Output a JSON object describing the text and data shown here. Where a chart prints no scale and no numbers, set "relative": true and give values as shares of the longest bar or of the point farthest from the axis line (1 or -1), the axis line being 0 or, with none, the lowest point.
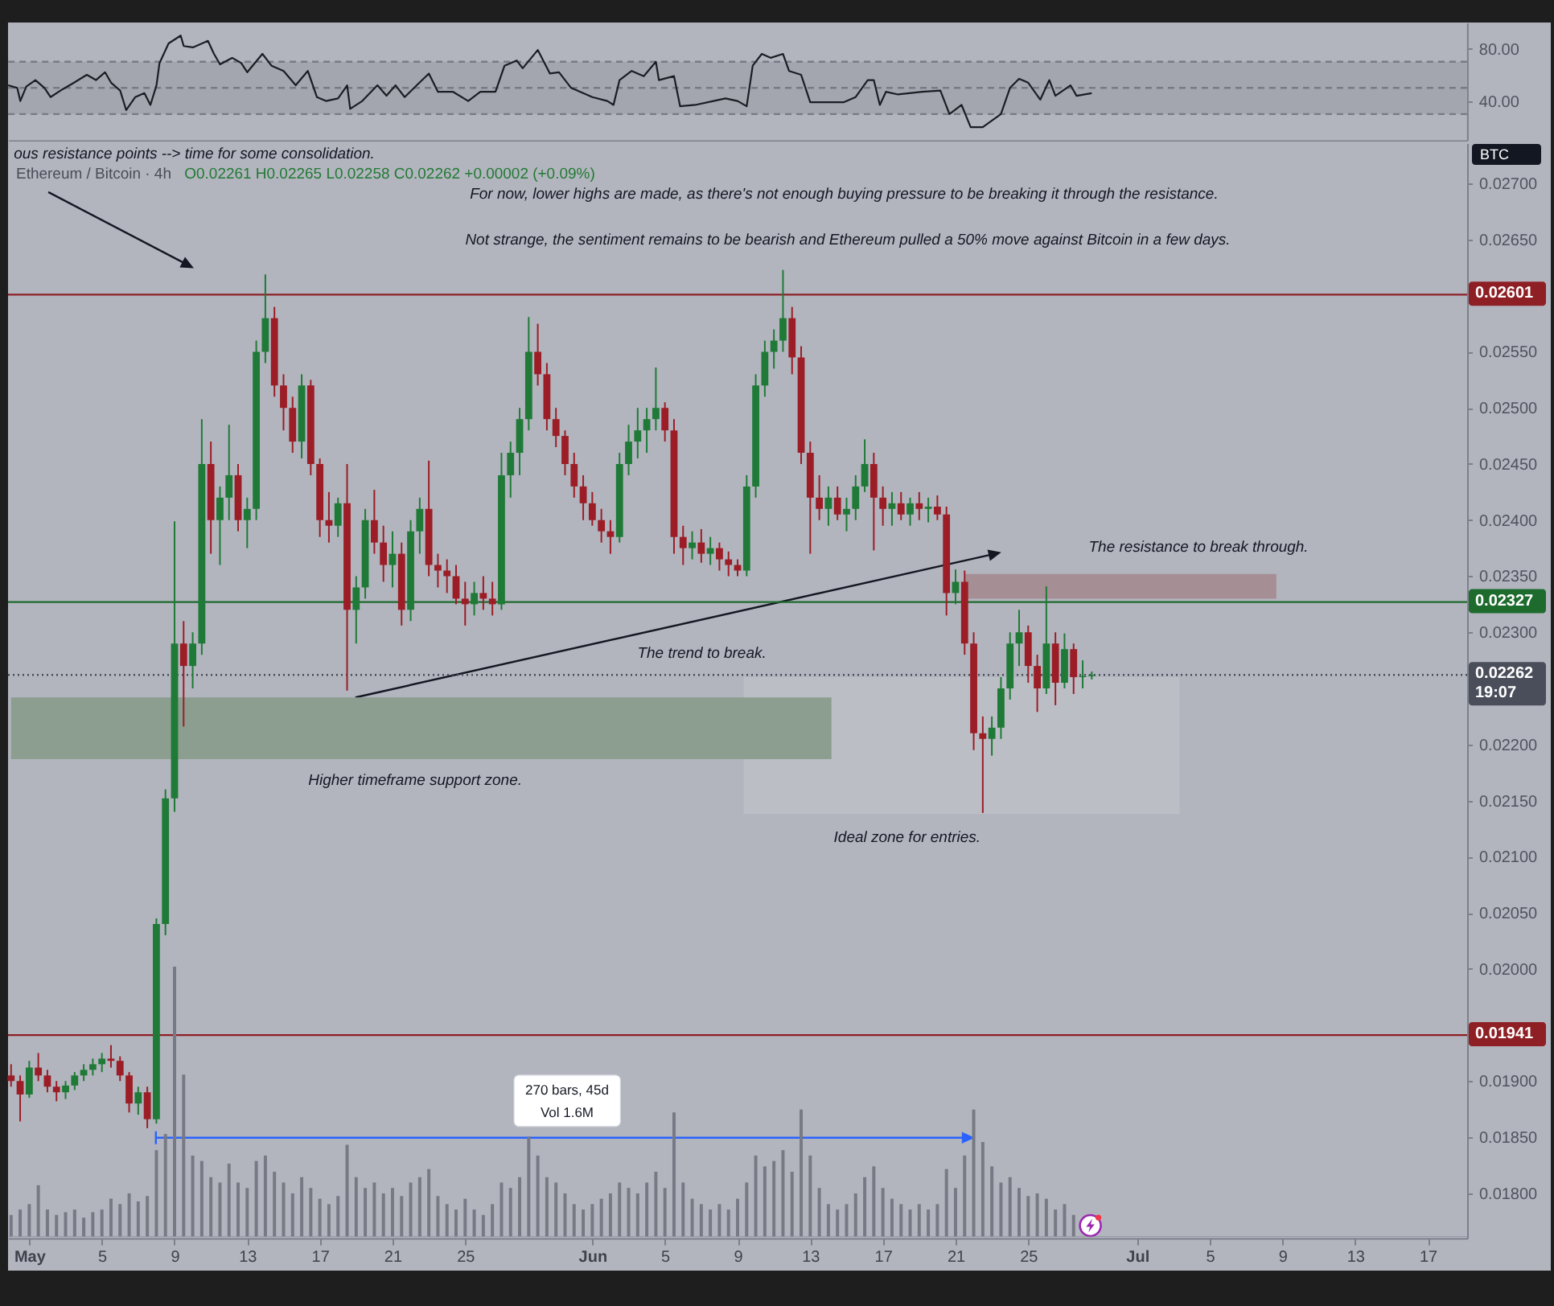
{
  "chart_data": [
    {
      "type": "line",
      "x": [
        "--04-29T20:00",
        "--04-30T08:00",
        "--04-30T12:00",
        "--04-30T20:00",
        "--05-01T08:00",
        "--05-01T20:00",
        "--05-02T04:00",
        "--05-02T20:00",
        "--05-03T08:00",
        "--05-04T04:00",
        "--05-04T16:00",
        "--05-05T04:00",
        "--05-05T12:00",
        "--05-06T00:00",
        "--05-06T08:00",
        "--05-06T20:00",
        "--05-07T08:00",
        "--05-07T16:00",
        "--05-08T00:00",
        "--05-08T04:00",
        "--05-08T16:00",
        "--05-09T08:00",
        "--05-09T12:00",
        "--05-10T00:00",
        "--05-10T08:00",
        "--05-10T20:00",
        "--05-11T04:00",
        "--05-11T12:00",
        "--05-12T04:00",
        "--05-12T16:00",
        "--05-13T00:00",
        "--05-13T20:00",
        "--05-14T08:00",
        "--05-15T00:00",
        "--05-15T16:00",
        "--05-16T08:00",
        "--05-16T20:00",
        "--05-17T08:00",
        "--05-18T00:00",
        "--05-18T12:00",
        "--05-18T16:00",
        "--05-19T08:00",
        "--05-20T04:00",
        "--05-20T16:00",
        "--05-21T04:00",
        "--05-21T16:00",
        "--05-22T08:00",
        "--05-23T00:00",
        "--05-23T12:00",
        "--05-24T08:00",
        "--05-25T04:00",
        "--05-25T20:00",
        "--05-26T16:00",
        "--05-27T04:00",
        "--05-27T20:00",
        "--05-28T04:00",
        "--05-29T00:00",
        "--05-29T16:00",
        "--05-30T04:00",
        "--05-30T20:00",
        "--06-01T00:00",
        "--06-01T20:00",
        "--06-02T04:00",
        "--06-02T12:00",
        "--06-03T04:00",
        "--06-03T20:00",
        "--06-04T12:00",
        "--06-04T16:00",
        "--06-05T12:00",
        "--06-05T20:00",
        "--06-06T16:00",
        "--06-07T16:00",
        "--06-08T08:00",
        "--06-09T00:00",
        "--06-09T12:00",
        "--06-09T20:00",
        "--06-10T08:00",
        "--06-10T20:00",
        "--06-11T12:00",
        "--06-11T20:00",
        "--06-12T12:00",
        "--06-13T00:00",
        "--06-14T00:00",
        "--06-14T20:00",
        "--06-15T12:00",
        "--06-16T04:00",
        "--06-16T12:00",
        "--06-16T20:00",
        "--06-17T04:00",
        "--06-17T20:00",
        "--06-19T04:00",
        "--06-20T04:00",
        "--06-20T16:00",
        "--06-21T08:00",
        "--06-21T20:00",
        "--06-22T12:00",
        "--06-23T12:00",
        "--06-24T00:00",
        "--06-24T12:00",
        "--06-25T00:00",
        "--06-25T16:00",
        "--06-26T04:00",
        "--06-26T12:00",
        "--06-27T08:00",
        "--06-27T16:00",
        "--06-28T12:00"
      ],
      "values": [
        52,
        50,
        40,
        51,
        56,
        50,
        43,
        49,
        53,
        60,
        56,
        62,
        54,
        48,
        33,
        43,
        46,
        37,
        52,
        69,
        84,
        90,
        82,
        81,
        83,
        86,
        76,
        68,
        73,
        69,
        62,
        76,
        67,
        63,
        52,
        63,
        43,
        40,
        42,
        52,
        34,
        40,
        52,
        44,
        52,
        43,
        52,
        61,
        47,
        47,
        40,
        47,
        47,
        67,
        71,
        65,
        79,
        61,
        62,
        50,
        43,
        40,
        37,
        56,
        63,
        59,
        70,
        56,
        59,
        36,
        37,
        40,
        42,
        40,
        36,
        67,
        76,
        73,
        76,
        63,
        60,
        39,
        39,
        39,
        43,
        56,
        56,
        37,
        47,
        45,
        47,
        48,
        30,
        37,
        20,
        20,
        30,
        50,
        57,
        54,
        41,
        56,
        44,
        52,
        44,
        46
      ],
      "color": "#1b1d24",
      "xlim": [
        "--04-29T20:00",
        "--07-19T04:00"
      ],
      "ylim": [
        10,
        100
      ],
      "yticks": [
        {
          "value": 80,
          "label": "80.00"
        },
        {
          "value": 40,
          "label": "40.00"
        }
      ],
      "tick_labels": "y",
      "bands": [
        {
          "axis": "y",
          "from": 30,
          "to": 70,
          "color": "#a3a6ae"
        }
      ],
      "ref_lines": [
        {
          "axis": "y",
          "value": 70,
          "color": "#787b86",
          "line_style": "dashed"
        },
        {
          "axis": "y",
          "value": 50,
          "color": "#787b86",
          "line_style": "dashed"
        },
        {
          "axis": "y",
          "value": 30,
          "color": "#787b86",
          "line_style": "dashed"
        }
      ]
    },
    {
      "type": "candlestick",
      "title": "Ethereum / Bitcoin · 4h",
      "subtitle": "O0.02261 H0.02265 L0.02258 C0.02262 +0.00002 (+0.09%)",
      "ylabel": "BTC",
      "x": [
        "--04-30T00:00",
        "--04-30T12:00",
        "--05-01T00:00",
        "--05-01T12:00",
        "--05-02T00:00",
        "--05-02T12:00",
        "--05-03T00:00",
        "--05-03T12:00",
        "--05-04T00:00",
        "--05-04T12:00",
        "--05-05T00:00",
        "--05-05T12:00",
        "--05-06T00:00",
        "--05-06T12:00",
        "--05-07T00:00",
        "--05-07T12:00",
        "--05-08T00:00",
        "--05-08T12:00",
        "--05-09T00:00",
        "--05-09T12:00",
        "--05-10T00:00",
        "--05-10T12:00",
        "--05-11T00:00",
        "--05-11T12:00",
        "--05-12T00:00",
        "--05-12T12:00",
        "--05-13T00:00",
        "--05-13T12:00",
        "--05-14T00:00",
        "--05-14T12:00",
        "--05-15T00:00",
        "--05-15T12:00",
        "--05-16T00:00",
        "--05-16T12:00",
        "--05-17T00:00",
        "--05-17T12:00",
        "--05-18T00:00",
        "--05-18T12:00",
        "--05-19T00:00",
        "--05-19T12:00",
        "--05-20T00:00",
        "--05-20T12:00",
        "--05-21T00:00",
        "--05-21T12:00",
        "--05-22T00:00",
        "--05-22T12:00",
        "--05-23T00:00",
        "--05-23T12:00",
        "--05-24T00:00",
        "--05-24T12:00",
        "--05-25T00:00",
        "--05-25T12:00",
        "--05-26T00:00",
        "--05-26T12:00",
        "--05-27T00:00",
        "--05-27T12:00",
        "--05-28T00:00",
        "--05-28T12:00",
        "--05-29T00:00",
        "--05-29T12:00",
        "--05-30T00:00",
        "--05-30T12:00",
        "--05-31T00:00",
        "--05-31T12:00",
        "--06-01T00:00",
        "--06-01T12:00",
        "--06-02T00:00",
        "--06-02T12:00",
        "--06-03T00:00",
        "--06-03T12:00",
        "--06-04T00:00",
        "--06-04T12:00",
        "--06-05T00:00",
        "--06-05T12:00",
        "--06-06T00:00",
        "--06-06T12:00",
        "--06-07T00:00",
        "--06-07T12:00",
        "--06-08T00:00",
        "--06-08T12:00",
        "--06-09T00:00",
        "--06-09T12:00",
        "--06-10T00:00",
        "--06-10T12:00",
        "--06-11T00:00",
        "--06-11T12:00",
        "--06-12T00:00",
        "--06-12T12:00",
        "--06-13T00:00",
        "--06-13T12:00",
        "--06-14T00:00",
        "--06-14T12:00",
        "--06-15T00:00",
        "--06-15T12:00",
        "--06-16T00:00",
        "--06-16T12:00",
        "--06-17T00:00",
        "--06-17T12:00",
        "--06-18T00:00",
        "--06-18T12:00",
        "--06-19T00:00",
        "--06-19T12:00",
        "--06-20T00:00",
        "--06-20T12:00",
        "--06-21T00:00",
        "--06-21T12:00",
        "--06-22T00:00",
        "--06-22T12:00",
        "--06-23T00:00",
        "--06-23T12:00",
        "--06-24T00:00",
        "--06-24T12:00",
        "--06-25T00:00",
        "--06-25T12:00",
        "--06-26T00:00",
        "--06-26T12:00",
        "--06-27T00:00",
        "--06-27T12:00",
        "--06-28T00:00",
        "--06-28T12:00"
      ],
      "ohlc": [
        [
          0.01905,
          0.01915,
          0.01895,
          0.019
        ],
        [
          0.019,
          0.01905,
          0.01864,
          0.01888
        ],
        [
          0.01888,
          0.01918,
          0.01885,
          0.01912
        ],
        [
          0.01912,
          0.01925,
          0.019,
          0.01905
        ],
        [
          0.01905,
          0.0191,
          0.0189,
          0.01895
        ],
        [
          0.01895,
          0.019,
          0.01882,
          0.0189
        ],
        [
          0.0189,
          0.019,
          0.01884,
          0.01896
        ],
        [
          0.01896,
          0.01908,
          0.01892,
          0.01905
        ],
        [
          0.01905,
          0.01915,
          0.019,
          0.0191
        ],
        [
          0.0191,
          0.0192,
          0.01905,
          0.01915
        ],
        [
          0.01915,
          0.01925,
          0.01908,
          0.0192
        ],
        [
          0.0192,
          0.01932,
          0.01912,
          0.01918
        ],
        [
          0.01918,
          0.01922,
          0.019,
          0.01905
        ],
        [
          0.01905,
          0.01908,
          0.01872,
          0.0188
        ],
        [
          0.0188,
          0.01895,
          0.0187,
          0.0189
        ],
        [
          0.0189,
          0.01895,
          0.01858,
          0.01866
        ],
        [
          0.01866,
          0.02045,
          0.01862,
          0.0204
        ],
        [
          0.0204,
          0.0216,
          0.0203,
          0.02152
        ],
        [
          0.02152,
          0.02399,
          0.0214,
          0.0229
        ],
        [
          0.0229,
          0.0231,
          0.02216,
          0.0227
        ],
        [
          0.0227,
          0.023,
          0.0225,
          0.0229
        ],
        [
          0.0229,
          0.0249,
          0.0228,
          0.0245
        ],
        [
          0.0245,
          0.0247,
          0.0237,
          0.024
        ],
        [
          0.024,
          0.0243,
          0.0236,
          0.0242
        ],
        [
          0.0242,
          0.02485,
          0.024,
          0.0244
        ],
        [
          0.0244,
          0.0245,
          0.0239,
          0.024
        ],
        [
          0.024,
          0.0242,
          0.02375,
          0.0241
        ],
        [
          0.0241,
          0.0256,
          0.024,
          0.0255
        ],
        [
          0.0255,
          0.02619,
          0.0254,
          0.0258
        ],
        [
          0.0258,
          0.0259,
          0.0251,
          0.0252
        ],
        [
          0.0252,
          0.0253,
          0.0248,
          0.025
        ],
        [
          0.025,
          0.0251,
          0.0246,
          0.0247
        ],
        [
          0.0247,
          0.0253,
          0.02455,
          0.0252
        ],
        [
          0.0252,
          0.02525,
          0.0244,
          0.0245
        ],
        [
          0.0245,
          0.02455,
          0.02385,
          0.024
        ],
        [
          0.024,
          0.02425,
          0.0238,
          0.02395
        ],
        [
          0.02395,
          0.0242,
          0.02385,
          0.02415
        ],
        [
          0.02415,
          0.0245,
          0.02248,
          0.0232
        ],
        [
          0.0232,
          0.0235,
          0.0229,
          0.0234
        ],
        [
          0.0234,
          0.0241,
          0.0233,
          0.024
        ],
        [
          0.024,
          0.02427,
          0.0237,
          0.0238
        ],
        [
          0.0238,
          0.02395,
          0.02345,
          0.0236
        ],
        [
          0.0236,
          0.0239,
          0.0234,
          0.0237
        ],
        [
          0.0237,
          0.0238,
          0.02306,
          0.0232
        ],
        [
          0.0232,
          0.024,
          0.0231,
          0.0239
        ],
        [
          0.0239,
          0.0242,
          0.0237,
          0.0241
        ],
        [
          0.0241,
          0.02453,
          0.0235,
          0.0236
        ],
        [
          0.0236,
          0.0237,
          0.0234,
          0.02355
        ],
        [
          0.02355,
          0.02365,
          0.02335,
          0.0235
        ],
        [
          0.0235,
          0.0236,
          0.02325,
          0.0233
        ],
        [
          0.0233,
          0.02345,
          0.02306,
          0.02325
        ],
        [
          0.02325,
          0.02345,
          0.02315,
          0.02335
        ],
        [
          0.02335,
          0.0235,
          0.0232,
          0.0233
        ],
        [
          0.0233,
          0.02345,
          0.02315,
          0.02325
        ],
        [
          0.02325,
          0.0246,
          0.0232,
          0.0244
        ],
        [
          0.0244,
          0.0247,
          0.0242,
          0.0246
        ],
        [
          0.0246,
          0.025,
          0.0244,
          0.0249
        ],
        [
          0.0249,
          0.02581,
          0.0248,
          0.0255
        ],
        [
          0.0255,
          0.02575,
          0.0252,
          0.0253
        ],
        [
          0.0253,
          0.0254,
          0.0248,
          0.0249
        ],
        [
          0.0249,
          0.025,
          0.02465,
          0.02475
        ],
        [
          0.02475,
          0.0248,
          0.0244,
          0.0245
        ],
        [
          0.0245,
          0.0246,
          0.0242,
          0.0243
        ],
        [
          0.0243,
          0.0244,
          0.024,
          0.02415
        ],
        [
          0.02415,
          0.02425,
          0.02395,
          0.024
        ],
        [
          0.024,
          0.0241,
          0.0238,
          0.0239
        ],
        [
          0.0239,
          0.024,
          0.0237,
          0.02385
        ],
        [
          0.02385,
          0.0246,
          0.0238,
          0.0245
        ],
        [
          0.0245,
          0.02485,
          0.0244,
          0.0247
        ],
        [
          0.0247,
          0.025,
          0.02455,
          0.0248
        ],
        [
          0.0248,
          0.025,
          0.0246,
          0.0249
        ],
        [
          0.0249,
          0.02536,
          0.0248,
          0.025
        ],
        [
          0.025,
          0.02505,
          0.0247,
          0.0248
        ],
        [
          0.0248,
          0.0249,
          0.0237,
          0.02385
        ],
        [
          0.02385,
          0.02395,
          0.0236,
          0.02375
        ],
        [
          0.02375,
          0.0239,
          0.02365,
          0.0238
        ],
        [
          0.0238,
          0.02392,
          0.02362,
          0.0237
        ],
        [
          0.0237,
          0.02385,
          0.0236,
          0.02375
        ],
        [
          0.02375,
          0.0238,
          0.02355,
          0.02365
        ],
        [
          0.02365,
          0.02372,
          0.0235,
          0.0236
        ],
        [
          0.0236,
          0.02365,
          0.0235,
          0.02355
        ],
        [
          0.02355,
          0.0244,
          0.0235,
          0.0243
        ],
        [
          0.0243,
          0.0253,
          0.0242,
          0.0252
        ],
        [
          0.0252,
          0.0256,
          0.0251,
          0.0255
        ],
        [
          0.0255,
          0.0257,
          0.02535,
          0.0256
        ],
        [
          0.0256,
          0.02623,
          0.0255,
          0.0258
        ],
        [
          0.0258,
          0.0259,
          0.0253,
          0.02545
        ],
        [
          0.02545,
          0.02555,
          0.0245,
          0.0246
        ],
        [
          0.0246,
          0.0247,
          0.0237,
          0.0242
        ],
        [
          0.0242,
          0.0244,
          0.024,
          0.0241
        ],
        [
          0.0241,
          0.0243,
          0.02395,
          0.0242
        ],
        [
          0.0242,
          0.0243,
          0.024,
          0.02405
        ],
        [
          0.02405,
          0.0242,
          0.0239,
          0.0241
        ],
        [
          0.0241,
          0.0244,
          0.024,
          0.0243
        ],
        [
          0.0243,
          0.02472,
          0.02425,
          0.0245
        ],
        [
          0.0245,
          0.0246,
          0.02373,
          0.0242
        ],
        [
          0.0242,
          0.0243,
          0.02395,
          0.0241
        ],
        [
          0.0241,
          0.02425,
          0.02395,
          0.02415
        ],
        [
          0.02415,
          0.02425,
          0.024,
          0.02405
        ],
        [
          0.02405,
          0.0242,
          0.02395,
          0.02415
        ],
        [
          0.02415,
          0.02425,
          0.024,
          0.0241
        ],
        [
          0.0241,
          0.0242,
          0.02398,
          0.02412
        ],
        [
          0.02412,
          0.02422,
          0.024,
          0.02405
        ],
        [
          0.02405,
          0.02412,
          0.02315,
          0.02335
        ],
        [
          0.02335,
          0.02356,
          0.02325,
          0.02345
        ],
        [
          0.02345,
          0.02355,
          0.0228,
          0.0229
        ],
        [
          0.0229,
          0.023,
          0.02195,
          0.0221
        ],
        [
          0.0221,
          0.02225,
          0.02139,
          0.02205
        ],
        [
          0.02205,
          0.02225,
          0.0219,
          0.02215
        ],
        [
          0.02215,
          0.0226,
          0.02205,
          0.0225
        ],
        [
          0.0225,
          0.023,
          0.0224,
          0.0229
        ],
        [
          0.0229,
          0.0232,
          0.0227,
          0.023
        ],
        [
          0.023,
          0.02306,
          0.02255,
          0.0227
        ],
        [
          0.0227,
          0.0228,
          0.02229,
          0.0225
        ],
        [
          0.0225,
          0.02341,
          0.02245,
          0.0229
        ],
        [
          0.0229,
          0.023,
          0.02235,
          0.02255
        ],
        [
          0.02255,
          0.02299,
          0.0225,
          0.02285
        ],
        [
          0.02285,
          0.0229,
          0.02245,
          0.0226
        ],
        [
          0.0226,
          0.02275,
          0.0225,
          0.02261
        ],
        [
          0.02261,
          0.02265,
          0.02258,
          0.02262
        ]
      ],
      "xlim": [
        "--04-29T20:00",
        "--07-19T04:00"
      ],
      "xticks": [
        {
          "value": "--05-01T00:00",
          "label": "May"
        },
        {
          "value": "--05-05T00:00",
          "label": "5"
        },
        {
          "value": "--05-09T00:00",
          "label": "9"
        },
        {
          "value": "--05-13T00:00",
          "label": "13"
        },
        {
          "value": "--05-17T00:00",
          "label": "17"
        },
        {
          "value": "--05-21T00:00",
          "label": "21"
        },
        {
          "value": "--05-25T00:00",
          "label": "25"
        },
        {
          "value": "--06-01T00:00",
          "label": "Jun"
        },
        {
          "value": "--06-05T00:00",
          "label": "5"
        },
        {
          "value": "--06-09T00:00",
          "label": "9"
        },
        {
          "value": "--06-13T00:00",
          "label": "13"
        },
        {
          "value": "--06-17T00:00",
          "label": "17"
        },
        {
          "value": "--06-21T00:00",
          "label": "21"
        },
        {
          "value": "--06-25T00:00",
          "label": "25"
        },
        {
          "value": "--07-01T00:00",
          "label": "Jul"
        },
        {
          "value": "--07-05T00:00",
          "label": "5"
        },
        {
          "value": "--07-09T00:00",
          "label": "9"
        },
        {
          "value": "--07-13T00:00",
          "label": "13"
        },
        {
          "value": "--07-17T00:00",
          "label": "17"
        }
      ],
      "ylim": [
        0.0176,
        0.02736
      ],
      "yticks": [
        {
          "value": 0.027,
          "label": "0.02700"
        },
        {
          "value": 0.0265,
          "label": "0.02650"
        },
        {
          "value": 0.0255,
          "label": "0.02550"
        },
        {
          "value": 0.025,
          "label": "0.02500"
        },
        {
          "value": 0.0245,
          "label": "0.02450"
        },
        {
          "value": 0.024,
          "label": "0.02400"
        },
        {
          "value": 0.0235,
          "label": "0.02350"
        },
        {
          "value": 0.023,
          "label": "0.02300"
        },
        {
          "value": 0.022,
          "label": "0.02200"
        },
        {
          "value": 0.0215,
          "label": "0.02150"
        },
        {
          "value": 0.021,
          "label": "0.02100"
        },
        {
          "value": 0.0205,
          "label": "0.02050"
        },
        {
          "value": 0.02,
          "label": "0.02000"
        },
        {
          "value": 0.019,
          "label": "0.01900"
        },
        {
          "value": 0.0185,
          "label": "0.01850"
        },
        {
          "value": 0.018,
          "label": "0.01800"
        }
      ],
      "ref_lines": [
        {
          "axis": "y",
          "value": 0.02601,
          "label": "0.02601",
          "color": "#8e1f24"
        },
        {
          "axis": "y",
          "value": 0.02327,
          "label": "0.02327",
          "color": "#1e6b2e"
        },
        {
          "axis": "y",
          "value": 0.02262,
          "label": "0.02262\n19:07",
          "color": "#4a4e5a",
          "line_style": "dotted"
        },
        {
          "axis": "y",
          "value": 0.01941,
          "label": "0.01941",
          "color": "#8e1f24"
        }
      ],
      "series": [
        {
          "type": "line",
          "x": [
            "--06-09T08:00",
            "--07-03T08:00"
          ],
          "values": [
            null,
            null
          ],
          "lower": [
            0.02138,
            0.02138
          ],
          "upper": [
            0.0226,
            0.0226
          ],
          "color": "#bcbec6"
        },
        {
          "type": "line",
          "x": [
            "--04-30T00:00",
            "--06-14T04:00"
          ],
          "values": [
            null,
            null
          ],
          "lower": [
            0.02187,
            0.02187
          ],
          "upper": [
            0.02242,
            0.02242
          ],
          "color": "#8b9e90"
        },
        {
          "type": "line",
          "x": [
            "--06-21T12:00",
            "--07-08T16:00"
          ],
          "values": [
            null,
            null
          ],
          "lower": [
            0.0233,
            0.0233
          ],
          "upper": [
            0.02352,
            0.02352
          ],
          "color": "#a68e95"
        }
      ],
      "annotations": [
        "ous resistance points --> time for some consolidation.",
        "For now, lower highs are made, as there's not enough buying pressure to be breaking it through the resistance.",
        "Not strange, the sentiment remains to be bearish and Ethereum pulled a 50% move against Bitcoin in a few days.",
        "The resistance to break through.",
        "The trend to break.",
        "Higher timeframe support zone.",
        "Ideal zone for entries.",
        "270 bars, 45d",
        "Vol 1.6M"
      ]
    },
    {
      "type": "bar",
      "relative": true,
      "x": [
        "--04-30T00:00",
        "--04-30T12:00",
        "--05-01T00:00",
        "--05-01T12:00",
        "--05-02T00:00",
        "--05-02T12:00",
        "--05-03T00:00",
        "--05-03T12:00",
        "--05-04T00:00",
        "--05-04T12:00",
        "--05-05T00:00",
        "--05-05T12:00",
        "--05-06T00:00",
        "--05-06T12:00",
        "--05-07T00:00",
        "--05-07T12:00",
        "--05-08T00:00",
        "--05-08T12:00",
        "--05-09T00:00",
        "--05-09T12:00",
        "--05-10T00:00",
        "--05-10T12:00",
        "--05-11T00:00",
        "--05-11T12:00",
        "--05-12T00:00",
        "--05-12T12:00",
        "--05-13T00:00",
        "--05-13T12:00",
        "--05-14T00:00",
        "--05-14T12:00",
        "--05-15T00:00",
        "--05-15T12:00",
        "--05-16T00:00",
        "--05-16T12:00",
        "--05-17T00:00",
        "--05-17T12:00",
        "--05-18T00:00",
        "--05-18T12:00",
        "--05-19T00:00",
        "--05-19T12:00",
        "--05-20T00:00",
        "--05-20T12:00",
        "--05-21T00:00",
        "--05-21T12:00",
        "--05-22T00:00",
        "--05-22T12:00",
        "--05-23T00:00",
        "--05-23T12:00",
        "--05-24T00:00",
        "--05-24T12:00",
        "--05-25T00:00",
        "--05-25T12:00",
        "--05-26T00:00",
        "--05-26T12:00",
        "--05-27T00:00",
        "--05-27T12:00",
        "--05-28T00:00",
        "--05-28T12:00",
        "--05-29T00:00",
        "--05-29T12:00",
        "--05-30T00:00",
        "--05-30T12:00",
        "--05-31T00:00",
        "--05-31T12:00",
        "--06-01T00:00",
        "--06-01T12:00",
        "--06-02T00:00",
        "--06-02T12:00",
        "--06-03T00:00",
        "--06-03T12:00",
        "--06-04T00:00",
        "--06-04T12:00",
        "--06-05T00:00",
        "--06-05T12:00",
        "--06-06T00:00",
        "--06-06T12:00",
        "--06-07T00:00",
        "--06-07T12:00",
        "--06-08T00:00",
        "--06-08T12:00",
        "--06-09T00:00",
        "--06-09T12:00",
        "--06-10T00:00",
        "--06-10T12:00",
        "--06-11T00:00",
        "--06-11T12:00",
        "--06-12T00:00",
        "--06-12T12:00",
        "--06-13T00:00",
        "--06-13T12:00",
        "--06-14T00:00",
        "--06-14T12:00",
        "--06-15T00:00",
        "--06-15T12:00",
        "--06-16T00:00",
        "--06-16T12:00",
        "--06-17T00:00",
        "--06-17T12:00",
        "--06-18T00:00",
        "--06-18T12:00",
        "--06-19T00:00",
        "--06-19T12:00",
        "--06-20T00:00",
        "--06-20T12:00",
        "--06-21T00:00",
        "--06-21T12:00",
        "--06-22T00:00",
        "--06-22T12:00",
        "--06-23T00:00",
        "--06-23T12:00",
        "--06-24T00:00",
        "--06-24T12:00",
        "--06-25T00:00",
        "--06-25T12:00",
        "--06-26T00:00",
        "--06-26T12:00",
        "--06-27T00:00",
        "--06-27T12:00"
      ],
      "values": [
        0.08,
        0.1,
        0.12,
        0.19,
        0.1,
        0.08,
        0.09,
        0.1,
        0.07,
        0.09,
        0.1,
        0.14,
        0.12,
        0.16,
        0.13,
        0.15,
        0.32,
        0.38,
        1,
        0.6,
        0.3,
        0.28,
        0.22,
        0.2,
        0.27,
        0.2,
        0.18,
        0.28,
        0.3,
        0.24,
        0.2,
        0.16,
        0.22,
        0.18,
        0.14,
        0.12,
        0.15,
        0.34,
        0.22,
        0.18,
        0.2,
        0.16,
        0.18,
        0.15,
        0.2,
        0.22,
        0.25,
        0.15,
        0.12,
        0.1,
        0.14,
        0.1,
        0.08,
        0.12,
        0.2,
        0.18,
        0.22,
        0.37,
        0.3,
        0.22,
        0.2,
        0.16,
        0.12,
        0.1,
        0.12,
        0.14,
        0.16,
        0.2,
        0.18,
        0.16,
        0.2,
        0.24,
        0.18,
        0.46,
        0.2,
        0.14,
        0.12,
        0.1,
        0.12,
        0.1,
        0.14,
        0.2,
        0.3,
        0.26,
        0.28,
        0.32,
        0.24,
        0.47,
        0.3,
        0.18,
        0.12,
        0.1,
        0.12,
        0.16,
        0.22,
        0.26,
        0.18,
        0.14,
        0.12,
        0.1,
        0.12,
        0.1,
        0.12,
        0.25,
        0.18,
        0.3,
        0.47,
        0.35,
        0.26,
        0.2,
        0.22,
        0.18,
        0.15,
        0.16,
        0.14,
        0.1,
        0.12,
        0.08
      ],
      "color": "#777a84",
      "xlim": [
        "--04-29T20:00",
        "--07-19T04:00"
      ],
      "tick_labels": false
    }
  ]
}
